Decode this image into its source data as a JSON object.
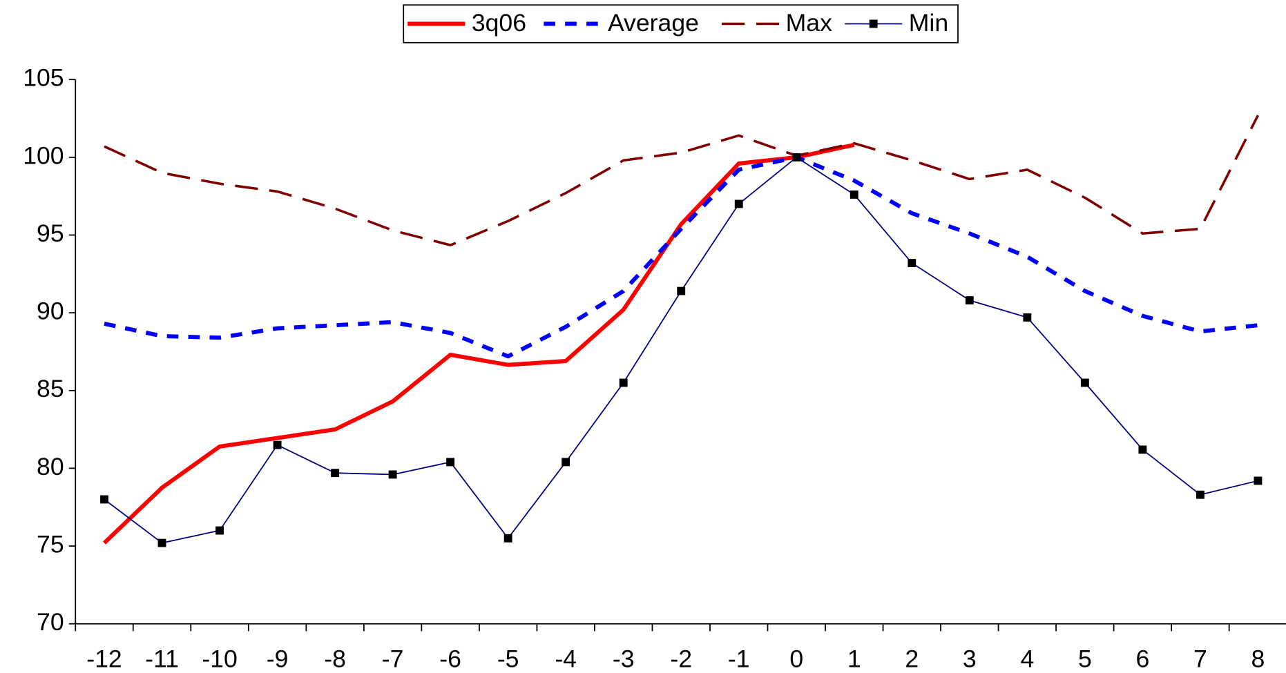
{
  "chart_data": {
    "type": "line",
    "categories": [
      "-12",
      "-11",
      "-10",
      "-9",
      "-8",
      "-7",
      "-6",
      "-5",
      "-4",
      "-3",
      "-2",
      "-1",
      "0",
      "1",
      "2",
      "3",
      "4",
      "5",
      "6",
      "7",
      "8"
    ],
    "series": [
      {
        "name": "3q06",
        "color": "#ff0000",
        "values": [
          75.2,
          78.75,
          81.4,
          81.95,
          82.5,
          84.3,
          87.3,
          86.65,
          86.9,
          90.2,
          95.7,
          99.6,
          100,
          100.8,
          null,
          null,
          null,
          null,
          null,
          null,
          null
        ]
      },
      {
        "name": "Average",
        "color": "#0000ff",
        "values": [
          89.3,
          88.5,
          88.4,
          89.0,
          89.2,
          89.4,
          88.7,
          87.2,
          89.1,
          91.4,
          95.4,
          99.2,
          100,
          98.5,
          96.4,
          95.1,
          93.6,
          91.4,
          89.8,
          88.8,
          89.2
        ]
      },
      {
        "name": "Max",
        "color": "#800000",
        "values": [
          100.7,
          99.0,
          98.3,
          97.8,
          96.7,
          95.3,
          94.35,
          95.9,
          97.7,
          99.8,
          100.3,
          101.4,
          100.1,
          100.9,
          99.8,
          98.6,
          99.2,
          97.4,
          95.1,
          95.4,
          102.7
        ]
      },
      {
        "name": "Min",
        "color": "#000080",
        "values": [
          78.0,
          75.2,
          76.0,
          81.5,
          79.7,
          79.6,
          80.4,
          75.5,
          80.4,
          85.5,
          91.4,
          97.0,
          100,
          97.6,
          93.2,
          90.8,
          89.7,
          85.5,
          81.2,
          78.3,
          79.2
        ]
      }
    ],
    "ylim": [
      70,
      105
    ],
    "yticks": [
      70,
      75,
      80,
      85,
      90,
      95,
      100,
      105
    ],
    "legend": "top"
  }
}
